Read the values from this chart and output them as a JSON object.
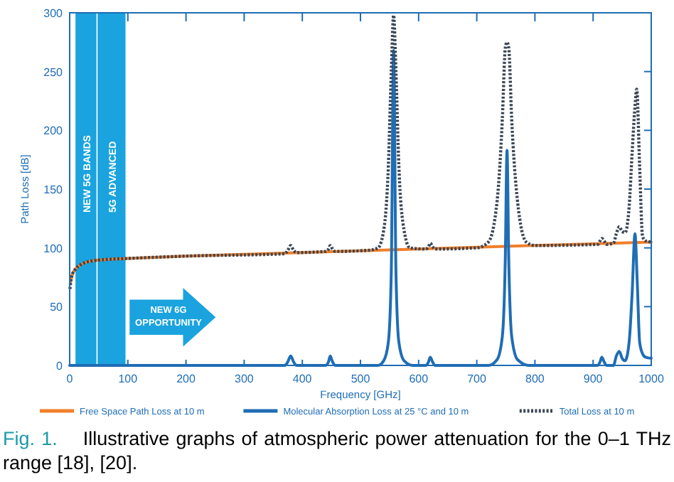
{
  "chart_data": {
    "type": "line",
    "xlabel": "Frequency [GHz]",
    "ylabel": "Path Loss [dB]",
    "xlim": [
      0,
      1000
    ],
    "xticks": [
      0,
      100,
      200,
      300,
      400,
      500,
      600,
      700,
      800,
      900,
      1000
    ],
    "ylim": [
      0,
      300
    ],
    "yticks": [
      0,
      50,
      100,
      150,
      200,
      250,
      300
    ],
    "grid": false,
    "legend": "bottom",
    "marker": "none",
    "series": [
      {
        "name": "Free Space Path Loss at 10 m",
        "color": "#f07f2a",
        "line_style": "solid",
        "x": [
          1,
          5,
          10,
          20,
          40,
          60,
          100,
          200,
          400,
          600,
          800,
          1000
        ],
        "values": [
          70,
          78,
          82,
          86,
          89,
          90,
          91,
          93,
          96,
          99,
          102,
          105
        ]
      },
      {
        "name": "Molecular Absorption Loss at 25 °C and 10 m",
        "color": "#1f6db5",
        "line_style": "solid",
        "x": [
          0,
          370,
          375,
          380,
          385,
          390,
          440,
          445,
          448,
          452,
          457,
          530,
          540,
          548,
          553,
          557,
          561,
          566,
          575,
          590,
          612,
          617,
          620,
          624,
          628,
          720,
          735,
          744,
          749,
          752,
          755,
          760,
          770,
          790,
          908,
          912,
          915,
          919,
          923,
          935,
          940,
          945,
          950,
          955,
          962,
          967,
          972,
          976,
          980,
          985,
          990,
          1000
        ],
        "values": [
          0,
          0,
          3,
          8,
          3,
          0,
          0,
          3,
          8,
          3,
          0,
          0,
          4,
          20,
          80,
          268,
          80,
          20,
          4,
          0,
          0,
          3,
          7,
          3,
          0,
          0,
          5,
          25,
          90,
          183,
          90,
          25,
          5,
          0,
          0,
          3,
          7,
          3,
          0,
          0,
          8,
          12,
          6,
          4,
          20,
          60,
          112,
          70,
          20,
          10,
          7,
          6
        ]
      },
      {
        "name": "Total Loss at 10 m",
        "color": "#3a4656",
        "line_style": "dotted",
        "x": [
          0.5,
          2,
          5,
          10,
          20,
          40,
          60,
          100,
          200,
          370,
          375,
          380,
          385,
          390,
          440,
          445,
          448,
          452,
          457,
          515,
          530,
          540,
          548,
          553,
          557,
          561,
          566,
          575,
          585,
          612,
          617,
          620,
          624,
          628,
          700,
          720,
          735,
          744,
          749,
          752,
          755,
          760,
          770,
          785,
          800,
          908,
          912,
          915,
          919,
          923,
          935,
          940,
          945,
          950,
          955,
          962,
          967,
          972,
          975,
          980,
          985,
          990,
          1000
        ],
        "values": [
          65,
          72,
          78,
          82,
          86,
          89,
          90,
          91,
          93,
          95,
          98,
          102,
          98,
          96,
          97,
          99,
          102,
          99,
          97,
          98,
          100,
          115,
          170,
          250,
          298,
          250,
          170,
          115,
          100,
          99,
          101,
          104,
          101,
          99,
          100,
          105,
          140,
          210,
          270,
          275,
          270,
          210,
          140,
          105,
          102,
          103,
          106,
          108,
          106,
          103,
          104,
          112,
          118,
          114,
          113,
          135,
          180,
          220,
          235,
          170,
          110,
          106,
          105
        ]
      }
    ],
    "bands": [
      {
        "axis": "x",
        "from": 10,
        "to": 46,
        "label": "NEW 5G BANDS",
        "color": "#1aa3de"
      },
      {
        "axis": "x",
        "from": 48,
        "to": 96,
        "label": "5G ADVANCED",
        "color": "#1aa3de"
      }
    ],
    "annotations": [
      "NEW 6G OPPORTUNITY",
      "Fig. 1.",
      "Illustrative graphs of atmospheric power attenuation for the 0–1 THz range [18], [20]."
    ]
  }
}
